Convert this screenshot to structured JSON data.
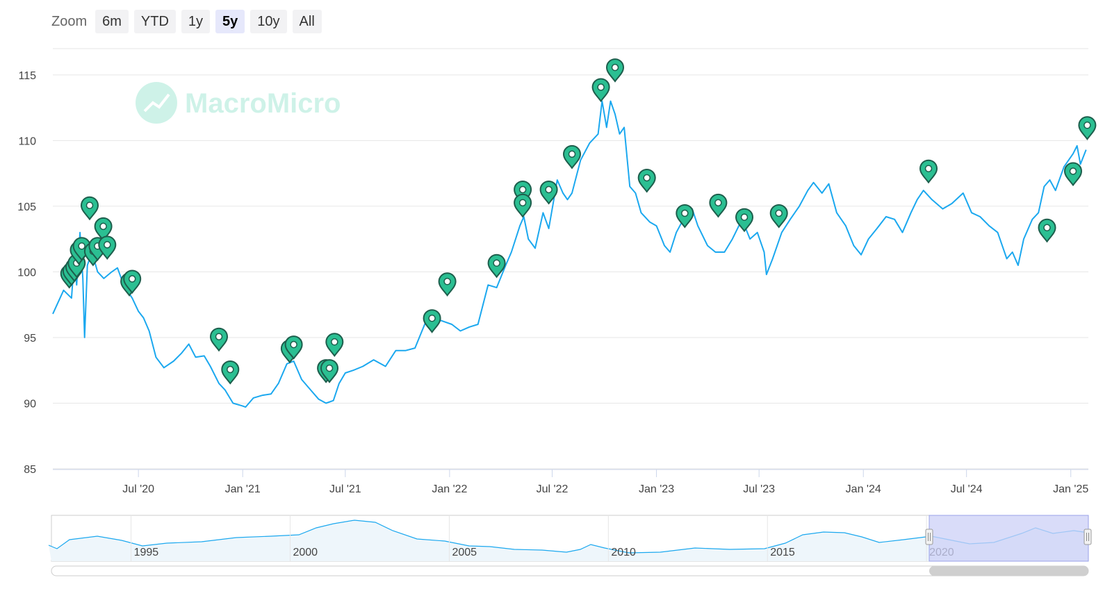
{
  "zoom": {
    "label": "Zoom",
    "buttons": [
      "6m",
      "YTD",
      "1y",
      "5y",
      "10y",
      "All"
    ],
    "selected": "5y"
  },
  "watermark": "MacroMicro",
  "colors": {
    "line": "#1ba8ef",
    "marker_fill": "#2bbf92",
    "marker_stroke": "#1d5e4c",
    "navigator_sel": "#ccd0f7"
  },
  "chart_data": {
    "type": "line",
    "ylim": [
      85,
      117
    ],
    "y_ticks": [
      85,
      90,
      95,
      100,
      105,
      110,
      115
    ],
    "x_range": [
      "2020-02-01",
      "2025-02-01"
    ],
    "x_ticks": [
      {
        "date": "2020-07-01",
        "label": "Jul '20"
      },
      {
        "date": "2021-01-01",
        "label": "Jan '21"
      },
      {
        "date": "2021-07-01",
        "label": "Jul '21"
      },
      {
        "date": "2022-01-01",
        "label": "Jan '22"
      },
      {
        "date": "2022-07-01",
        "label": "Jul '22"
      },
      {
        "date": "2023-01-01",
        "label": "Jan '23"
      },
      {
        "date": "2023-07-01",
        "label": "Jul '23"
      },
      {
        "date": "2024-01-01",
        "label": "Jan '24"
      },
      {
        "date": "2024-07-01",
        "label": "Jul '24"
      },
      {
        "date": "2025-01-01",
        "label": "Jan '25"
      }
    ],
    "series": [
      {
        "values": [
          [
            "2020-02-01",
            96.8
          ],
          [
            "2020-02-20",
            98.6
          ],
          [
            "2020-03-05",
            98.0
          ],
          [
            "2020-03-10",
            101.0
          ],
          [
            "2020-03-14",
            99.0
          ],
          [
            "2020-03-20",
            103.0
          ],
          [
            "2020-03-25",
            99.5
          ],
          [
            "2020-03-28",
            95.0
          ],
          [
            "2020-04-02",
            100.5
          ],
          [
            "2020-04-10",
            101.5
          ],
          [
            "2020-04-20",
            100.0
          ],
          [
            "2020-05-01",
            99.5
          ],
          [
            "2020-05-15",
            100.0
          ],
          [
            "2020-05-25",
            100.3
          ],
          [
            "2020-06-05",
            99.0
          ],
          [
            "2020-06-20",
            98.0
          ],
          [
            "2020-07-01",
            97.0
          ],
          [
            "2020-07-10",
            96.5
          ],
          [
            "2020-07-20",
            95.5
          ],
          [
            "2020-08-01",
            93.5
          ],
          [
            "2020-08-15",
            92.7
          ],
          [
            "2020-09-01",
            93.2
          ],
          [
            "2020-09-15",
            93.8
          ],
          [
            "2020-09-28",
            94.5
          ],
          [
            "2020-10-10",
            93.5
          ],
          [
            "2020-10-25",
            93.6
          ],
          [
            "2020-11-05",
            92.8
          ],
          [
            "2020-11-20",
            91.5
          ],
          [
            "2020-12-01",
            91.0
          ],
          [
            "2020-12-15",
            90.0
          ],
          [
            "2020-12-31",
            89.8
          ],
          [
            "2021-01-06",
            89.7
          ],
          [
            "2021-01-20",
            90.4
          ],
          [
            "2021-02-05",
            90.6
          ],
          [
            "2021-02-20",
            90.7
          ],
          [
            "2021-03-05",
            91.5
          ],
          [
            "2021-03-20",
            93.0
          ],
          [
            "2021-04-01",
            93.2
          ],
          [
            "2021-04-15",
            91.8
          ],
          [
            "2021-05-01",
            91.0
          ],
          [
            "2021-05-15",
            90.3
          ],
          [
            "2021-05-28",
            90.0
          ],
          [
            "2021-06-10",
            90.2
          ],
          [
            "2021-06-20",
            91.5
          ],
          [
            "2021-07-01",
            92.3
          ],
          [
            "2021-07-15",
            92.5
          ],
          [
            "2021-08-01",
            92.8
          ],
          [
            "2021-08-20",
            93.3
          ],
          [
            "2021-09-10",
            92.8
          ],
          [
            "2021-09-28",
            94.0
          ],
          [
            "2021-10-15",
            94.0
          ],
          [
            "2021-11-01",
            94.2
          ],
          [
            "2021-11-20",
            96.2
          ],
          [
            "2021-12-10",
            96.4
          ],
          [
            "2022-01-05",
            96.0
          ],
          [
            "2022-01-20",
            95.5
          ],
          [
            "2022-02-05",
            95.8
          ],
          [
            "2022-02-20",
            96.0
          ],
          [
            "2022-03-10",
            99.0
          ],
          [
            "2022-03-25",
            98.8
          ],
          [
            "2022-04-10",
            100.5
          ],
          [
            "2022-04-20",
            101.5
          ],
          [
            "2022-05-05",
            103.5
          ],
          [
            "2022-05-12",
            104.2
          ],
          [
            "2022-05-20",
            102.5
          ],
          [
            "2022-06-01",
            101.8
          ],
          [
            "2022-06-15",
            104.5
          ],
          [
            "2022-06-25",
            103.3
          ],
          [
            "2022-07-10",
            107.0
          ],
          [
            "2022-07-20",
            106.0
          ],
          [
            "2022-07-28",
            105.5
          ],
          [
            "2022-08-05",
            106.0
          ],
          [
            "2022-08-20",
            108.5
          ],
          [
            "2022-09-05",
            109.8
          ],
          [
            "2022-09-20",
            110.5
          ],
          [
            "2022-09-27",
            113.0
          ],
          [
            "2022-10-05",
            111.0
          ],
          [
            "2022-10-12",
            113.0
          ],
          [
            "2022-10-20",
            112.0
          ],
          [
            "2022-10-28",
            110.5
          ],
          [
            "2022-11-05",
            111.0
          ],
          [
            "2022-11-15",
            106.5
          ],
          [
            "2022-11-25",
            106.0
          ],
          [
            "2022-12-05",
            104.5
          ],
          [
            "2022-12-20",
            103.8
          ],
          [
            "2023-01-01",
            103.5
          ],
          [
            "2023-01-15",
            102.0
          ],
          [
            "2023-01-25",
            101.5
          ],
          [
            "2023-02-05",
            103.0
          ],
          [
            "2023-02-20",
            104.2
          ],
          [
            "2023-03-05",
            104.8
          ],
          [
            "2023-03-15",
            103.5
          ],
          [
            "2023-04-01",
            102.0
          ],
          [
            "2023-04-15",
            101.5
          ],
          [
            "2023-05-01",
            101.5
          ],
          [
            "2023-05-15",
            102.5
          ],
          [
            "2023-06-01",
            104.0
          ],
          [
            "2023-06-15",
            102.5
          ],
          [
            "2023-06-28",
            103.0
          ],
          [
            "2023-07-10",
            101.5
          ],
          [
            "2023-07-14",
            99.8
          ],
          [
            "2023-07-25",
            101.0
          ],
          [
            "2023-08-10",
            103.0
          ],
          [
            "2023-08-25",
            104.0
          ],
          [
            "2023-09-10",
            105.0
          ],
          [
            "2023-09-25",
            106.2
          ],
          [
            "2023-10-05",
            106.8
          ],
          [
            "2023-10-20",
            106.0
          ],
          [
            "2023-11-01",
            106.7
          ],
          [
            "2023-11-15",
            104.5
          ],
          [
            "2023-12-01",
            103.5
          ],
          [
            "2023-12-15",
            102.0
          ],
          [
            "2023-12-28",
            101.3
          ],
          [
            "2024-01-10",
            102.5
          ],
          [
            "2024-01-25",
            103.3
          ],
          [
            "2024-02-10",
            104.2
          ],
          [
            "2024-02-25",
            104.0
          ],
          [
            "2024-03-10",
            103.0
          ],
          [
            "2024-03-25",
            104.5
          ],
          [
            "2024-04-05",
            105.5
          ],
          [
            "2024-04-16",
            106.2
          ],
          [
            "2024-05-01",
            105.5
          ],
          [
            "2024-05-20",
            104.8
          ],
          [
            "2024-06-05",
            105.2
          ],
          [
            "2024-06-25",
            106.0
          ],
          [
            "2024-07-10",
            104.5
          ],
          [
            "2024-07-25",
            104.2
          ],
          [
            "2024-08-10",
            103.5
          ],
          [
            "2024-08-25",
            103.0
          ],
          [
            "2024-09-10",
            101.0
          ],
          [
            "2024-09-20",
            101.5
          ],
          [
            "2024-09-30",
            100.5
          ],
          [
            "2024-10-10",
            102.5
          ],
          [
            "2024-10-25",
            104.0
          ],
          [
            "2024-11-05",
            104.5
          ],
          [
            "2024-11-15",
            106.5
          ],
          [
            "2024-11-25",
            107.0
          ],
          [
            "2024-12-05",
            106.2
          ],
          [
            "2024-12-20",
            108.0
          ],
          [
            "2025-01-05",
            109.0
          ],
          [
            "2025-01-12",
            109.6
          ],
          [
            "2025-01-18",
            108.2
          ],
          [
            "2025-01-28",
            109.3
          ]
        ]
      }
    ],
    "event_markers": [
      [
        "2020-03-01",
        99.6
      ],
      [
        "2020-03-05",
        99.8
      ],
      [
        "2020-03-10",
        100.1
      ],
      [
        "2020-03-14",
        100.4
      ],
      [
        "2020-03-18",
        101.4
      ],
      [
        "2020-03-23",
        101.7
      ],
      [
        "2020-04-06",
        104.8
      ],
      [
        "2020-04-12",
        101.3
      ],
      [
        "2020-04-20",
        101.7
      ],
      [
        "2020-04-30",
        103.2
      ],
      [
        "2020-05-07",
        101.8
      ],
      [
        "2020-06-15",
        99.0
      ],
      [
        "2020-06-20",
        99.2
      ],
      [
        "2020-11-20",
        94.8
      ],
      [
        "2020-12-10",
        92.3
      ],
      [
        "2021-03-25",
        93.9
      ],
      [
        "2021-04-01",
        94.2
      ],
      [
        "2021-05-28",
        92.4
      ],
      [
        "2021-06-03",
        92.4
      ],
      [
        "2021-06-12",
        94.4
      ],
      [
        "2021-12-01",
        96.2
      ],
      [
        "2021-12-28",
        99.0
      ],
      [
        "2022-03-25",
        100.4
      ],
      [
        "2022-05-10",
        106.0
      ],
      [
        "2022-05-10",
        105.0
      ],
      [
        "2022-06-25",
        106.0
      ],
      [
        "2022-08-05",
        108.7
      ],
      [
        "2022-09-25",
        113.8
      ],
      [
        "2022-10-20",
        115.3
      ],
      [
        "2022-12-15",
        106.9
      ],
      [
        "2023-02-20",
        104.2
      ],
      [
        "2023-04-20",
        105.0
      ],
      [
        "2023-06-05",
        103.9
      ],
      [
        "2023-08-05",
        104.2
      ],
      [
        "2024-04-25",
        107.6
      ],
      [
        "2024-11-20",
        103.1
      ],
      [
        "2025-01-05",
        107.4
      ],
      [
        "2025-01-30",
        110.9
      ]
    ],
    "navigator": {
      "x_labels": [
        "1995",
        "2000",
        "2005",
        "2010",
        "2015",
        "2020"
      ],
      "selection": [
        "2020-02-01",
        "2025-02-01"
      ]
    }
  }
}
